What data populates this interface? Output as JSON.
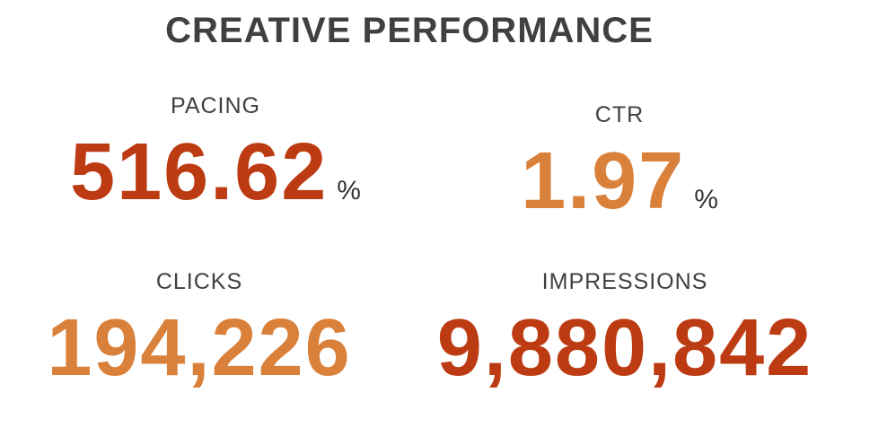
{
  "header": {
    "title": "CREATIVE PERFORMANCE"
  },
  "metrics": [
    {
      "label": "PACING",
      "value": "516.62",
      "unit": "%"
    },
    {
      "label": "CTR",
      "value": "1.97",
      "unit": "%"
    },
    {
      "label": "CLICKS",
      "value": "194,226"
    },
    {
      "label": "IMPRESSIONS",
      "value": "9,880,842"
    }
  ]
}
